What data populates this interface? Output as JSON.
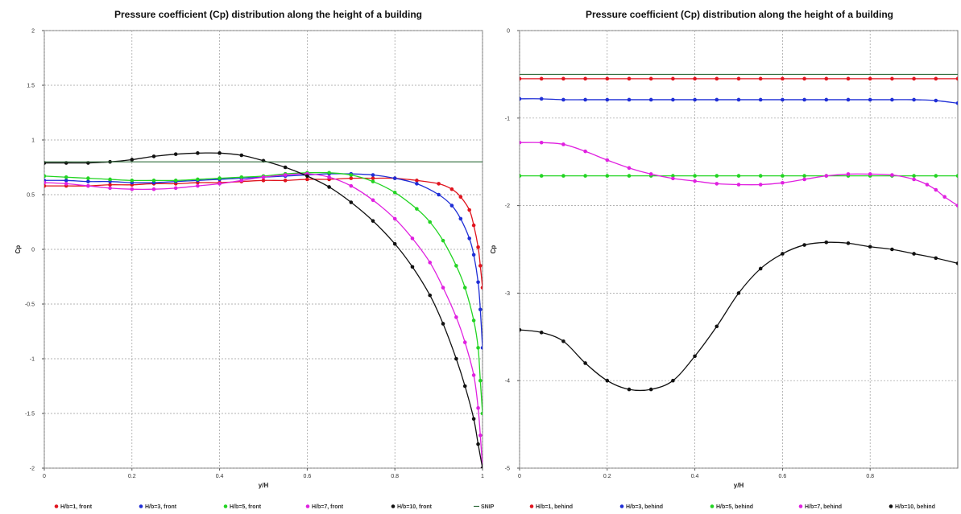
{
  "chart_data": [
    {
      "type": "line",
      "title": "Pressure coefficient (Cp) distribution along the height of a building",
      "xlabel": "y/H",
      "ylabel": "Cp",
      "xlim": [
        0,
        1
      ],
      "ylim": [
        -2,
        2
      ],
      "xticks": [
        0,
        0.2,
        0.4,
        0.6,
        0.8,
        1
      ],
      "xtick_labels": [
        "0",
        "0.2",
        "0.4",
        "0.6",
        "0.8",
        "1"
      ],
      "yticks": [
        -2,
        -1.5,
        -1,
        -0.5,
        0,
        0.5,
        1,
        1.5,
        2
      ],
      "ytick_labels": [
        "-2",
        "-1.5",
        "-1",
        "-0.5",
        "0",
        "0.5",
        "1",
        "1.5",
        "2"
      ],
      "grid": true,
      "legend": "bottom",
      "series": [
        {
          "name": "H/b=1, front",
          "color": "#e0141e",
          "markers": true,
          "x": [
            0,
            0.05,
            0.1,
            0.15,
            0.2,
            0.25,
            0.3,
            0.35,
            0.4,
            0.45,
            0.5,
            0.55,
            0.6,
            0.65,
            0.7,
            0.75,
            0.8,
            0.85,
            0.9,
            0.93,
            0.95,
            0.97,
            0.98,
            0.99,
            0.995,
            1.0
          ],
          "y": [
            0.58,
            0.58,
            0.58,
            0.59,
            0.59,
            0.6,
            0.6,
            0.61,
            0.61,
            0.62,
            0.63,
            0.63,
            0.64,
            0.64,
            0.65,
            0.65,
            0.65,
            0.63,
            0.6,
            0.55,
            0.48,
            0.36,
            0.22,
            0.02,
            -0.15,
            -0.35
          ]
        },
        {
          "name": "H/b=3, front",
          "color": "#1f2ed6",
          "markers": true,
          "x": [
            0,
            0.05,
            0.1,
            0.15,
            0.2,
            0.25,
            0.3,
            0.35,
            0.4,
            0.45,
            0.5,
            0.55,
            0.6,
            0.65,
            0.7,
            0.75,
            0.8,
            0.85,
            0.9,
            0.93,
            0.95,
            0.97,
            0.98,
            0.99,
            0.995,
            1.0
          ],
          "y": [
            0.63,
            0.63,
            0.62,
            0.62,
            0.61,
            0.61,
            0.62,
            0.63,
            0.64,
            0.65,
            0.66,
            0.67,
            0.68,
            0.69,
            0.69,
            0.68,
            0.65,
            0.6,
            0.5,
            0.4,
            0.28,
            0.1,
            -0.05,
            -0.3,
            -0.55,
            -0.9
          ]
        },
        {
          "name": "H/b=5, front",
          "color": "#22d422",
          "markers": true,
          "x": [
            0,
            0.05,
            0.1,
            0.15,
            0.2,
            0.25,
            0.3,
            0.35,
            0.4,
            0.45,
            0.5,
            0.55,
            0.6,
            0.65,
            0.7,
            0.75,
            0.8,
            0.85,
            0.88,
            0.91,
            0.94,
            0.96,
            0.98,
            0.99,
            0.995,
            1.0
          ],
          "y": [
            0.67,
            0.66,
            0.65,
            0.64,
            0.63,
            0.63,
            0.63,
            0.64,
            0.65,
            0.66,
            0.67,
            0.69,
            0.7,
            0.7,
            0.68,
            0.62,
            0.52,
            0.37,
            0.25,
            0.08,
            -0.15,
            -0.35,
            -0.65,
            -0.9,
            -1.2,
            -1.5
          ]
        },
        {
          "name": "H/b=7, front",
          "color": "#e020e0",
          "markers": true,
          "x": [
            0,
            0.05,
            0.1,
            0.15,
            0.2,
            0.25,
            0.3,
            0.35,
            0.4,
            0.45,
            0.5,
            0.55,
            0.6,
            0.65,
            0.7,
            0.75,
            0.8,
            0.84,
            0.88,
            0.91,
            0.94,
            0.96,
            0.98,
            0.99,
            0.995,
            1.0
          ],
          "y": [
            0.61,
            0.6,
            0.58,
            0.56,
            0.55,
            0.55,
            0.56,
            0.58,
            0.6,
            0.63,
            0.66,
            0.68,
            0.69,
            0.66,
            0.58,
            0.45,
            0.28,
            0.1,
            -0.12,
            -0.35,
            -0.62,
            -0.85,
            -1.15,
            -1.45,
            -1.7,
            -2.0
          ]
        },
        {
          "name": "H/b=10, front",
          "color": "#111111",
          "markers": true,
          "x": [
            0,
            0.05,
            0.1,
            0.15,
            0.2,
            0.25,
            0.3,
            0.35,
            0.4,
            0.45,
            0.5,
            0.55,
            0.6,
            0.65,
            0.7,
            0.75,
            0.8,
            0.84,
            0.88,
            0.91,
            0.94,
            0.96,
            0.98,
            0.99,
            1.0
          ],
          "y": [
            0.79,
            0.79,
            0.79,
            0.8,
            0.82,
            0.85,
            0.87,
            0.88,
            0.88,
            0.86,
            0.81,
            0.75,
            0.67,
            0.57,
            0.43,
            0.26,
            0.05,
            -0.16,
            -0.42,
            -0.68,
            -1.0,
            -1.25,
            -1.55,
            -1.78,
            -2.0
          ]
        },
        {
          "name": "SNIP",
          "color": "#2f6b3a",
          "markers": false,
          "x": [
            0,
            1
          ],
          "y": [
            0.8,
            0.8
          ]
        }
      ]
    },
    {
      "type": "line",
      "title": "Pressure coefficient (Cp) distribution along the height of a building",
      "xlabel": "y/H",
      "ylabel": "Cp",
      "xlim": [
        0,
        1
      ],
      "ylim": [
        -5,
        0
      ],
      "xticks": [
        0,
        0.2,
        0.4,
        0.6,
        0.8
      ],
      "xtick_labels": [
        "0",
        "0.2",
        "0.4",
        "0.6",
        "0.8"
      ],
      "yticks": [
        -5,
        -4,
        -3,
        -2,
        -1,
        0
      ],
      "ytick_labels": [
        "-5",
        "-4",
        "-3",
        "-2",
        "-1",
        "0"
      ],
      "grid": true,
      "legend": "bottom",
      "series": [
        {
          "name": "H/b=1, behind",
          "color": "#e0141e",
          "markers": true,
          "x": [
            0,
            0.05,
            0.1,
            0.15,
            0.2,
            0.25,
            0.3,
            0.35,
            0.4,
            0.45,
            0.5,
            0.55,
            0.6,
            0.65,
            0.7,
            0.75,
            0.8,
            0.85,
            0.9,
            0.95,
            1.0
          ],
          "y": [
            -0.55,
            -0.55,
            -0.55,
            -0.55,
            -0.55,
            -0.55,
            -0.55,
            -0.55,
            -0.55,
            -0.55,
            -0.55,
            -0.55,
            -0.55,
            -0.55,
            -0.55,
            -0.55,
            -0.55,
            -0.55,
            -0.55,
            -0.55,
            -0.55
          ]
        },
        {
          "name": "H/b=3, behind",
          "color": "#1f2ed6",
          "markers": true,
          "x": [
            0,
            0.05,
            0.1,
            0.15,
            0.2,
            0.25,
            0.3,
            0.35,
            0.4,
            0.45,
            0.5,
            0.55,
            0.6,
            0.65,
            0.7,
            0.75,
            0.8,
            0.85,
            0.9,
            0.95,
            1.0
          ],
          "y": [
            -0.78,
            -0.78,
            -0.79,
            -0.79,
            -0.79,
            -0.79,
            -0.79,
            -0.79,
            -0.79,
            -0.79,
            -0.79,
            -0.79,
            -0.79,
            -0.79,
            -0.79,
            -0.79,
            -0.79,
            -0.79,
            -0.79,
            -0.8,
            -0.83
          ]
        },
        {
          "name": "H/b=5, behind",
          "color": "#22d422",
          "markers": true,
          "x": [
            0,
            0.05,
            0.1,
            0.15,
            0.2,
            0.25,
            0.3,
            0.35,
            0.4,
            0.45,
            0.5,
            0.55,
            0.6,
            0.65,
            0.7,
            0.75,
            0.8,
            0.85,
            0.9,
            0.95,
            1.0
          ],
          "y": [
            -1.66,
            -1.66,
            -1.66,
            -1.66,
            -1.66,
            -1.66,
            -1.66,
            -1.66,
            -1.66,
            -1.66,
            -1.66,
            -1.66,
            -1.66,
            -1.66,
            -1.66,
            -1.66,
            -1.66,
            -1.66,
            -1.66,
            -1.66,
            -1.66
          ]
        },
        {
          "name": "H/b=7, behind",
          "color": "#e020e0",
          "markers": true,
          "x": [
            0,
            0.05,
            0.1,
            0.15,
            0.2,
            0.25,
            0.3,
            0.35,
            0.4,
            0.45,
            0.5,
            0.55,
            0.6,
            0.65,
            0.7,
            0.75,
            0.8,
            0.85,
            0.9,
            0.93,
            0.95,
            0.97,
            1.0
          ],
          "y": [
            -1.28,
            -1.28,
            -1.3,
            -1.38,
            -1.48,
            -1.57,
            -1.64,
            -1.69,
            -1.72,
            -1.75,
            -1.76,
            -1.76,
            -1.74,
            -1.7,
            -1.66,
            -1.64,
            -1.64,
            -1.65,
            -1.7,
            -1.76,
            -1.82,
            -1.9,
            -2.0
          ]
        },
        {
          "name": "H/b=10, behind",
          "color": "#111111",
          "markers": true,
          "x": [
            0,
            0.05,
            0.1,
            0.15,
            0.2,
            0.25,
            0.3,
            0.35,
            0.4,
            0.45,
            0.5,
            0.55,
            0.6,
            0.65,
            0.7,
            0.75,
            0.8,
            0.85,
            0.9,
            0.95,
            1.0
          ],
          "y": [
            -3.42,
            -3.45,
            -3.55,
            -3.8,
            -4.0,
            -4.1,
            -4.1,
            -4.0,
            -3.72,
            -3.38,
            -3.0,
            -2.72,
            -2.55,
            -2.45,
            -2.42,
            -2.43,
            -2.47,
            -2.5,
            -2.55,
            -2.6,
            -2.66
          ]
        },
        {
          "name": "SNIP",
          "color": "#2f6b3a",
          "markers": false,
          "x": [
            0,
            1
          ],
          "y": [
            -0.5,
            -0.5
          ]
        }
      ]
    }
  ]
}
